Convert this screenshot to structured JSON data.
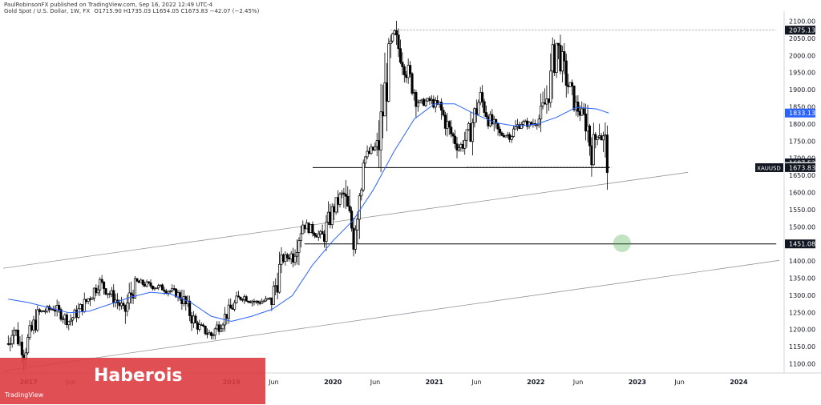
{
  "header": {
    "publisher": "PaulRobinsonFX published on TradingView.com, Sep 16, 2022 12:49 UTC-4",
    "symbol": "Gold Spot / U.S. Dollar, 1W, FX",
    "ohlc": "O1715.90 H1735.03 L1654.05 C1673.83 −42.07 (−2.45%)"
  },
  "overlay": {
    "brand": "Haberois",
    "footer": "TradingView"
  },
  "colors": {
    "up_candle": "#000000",
    "down_candle": "#000000",
    "ma_line": "#2962ff",
    "price_label_bg": "#131722",
    "ma_label_bg": "#2962ff",
    "target_circle": "#4caf50",
    "overlay_bg": "#dc3c40"
  },
  "chart_data": {
    "type": "candlestick",
    "symbol_label": "XAUUSD",
    "x_tick_labels": [
      "2017",
      "Jun",
      "2019",
      "Jun",
      "2020",
      "Jun",
      "2021",
      "Jun",
      "2022",
      "Jun",
      "2023",
      "Jun",
      "2024"
    ],
    "x_tick_dates": [
      "2017-01",
      "2017-06",
      "2019-01",
      "2019-06",
      "2020-01",
      "2020-06",
      "2021-01",
      "2021-06",
      "2022-01",
      "2022-06",
      "2023-01",
      "2023-06",
      "2024-01"
    ],
    "y_ticks": [
      1100,
      1150,
      1200,
      1250,
      1300,
      1350,
      1400,
      1450,
      1500,
      1550,
      1600,
      1650,
      1700,
      1750,
      1800,
      1850,
      1900,
      1950,
      2000,
      2050,
      2100
    ],
    "ylim": [
      1080,
      2120
    ],
    "grid": false,
    "price_axis_labels": [
      {
        "text": "2075.13",
        "value": 2075.13,
        "style": "dark"
      },
      {
        "text": "1833.13",
        "value": 1833.13,
        "style": "blue"
      },
      {
        "text": "1687.52",
        "value": 1687.52,
        "style": "dark"
      },
      {
        "text": "1676.69",
        "value": 1676.69,
        "style": "plain"
      },
      {
        "text": "1673.83",
        "value": 1673.83,
        "style": "dark"
      },
      {
        "text": "1451.08",
        "value": 1451.08,
        "style": "dark"
      }
    ],
    "horizontal_levels": [
      {
        "value": 1673.83,
        "from": 2019.8,
        "to": 2022.73,
        "style": "solid"
      },
      {
        "value": 1451.08,
        "from": 2019.72,
        "to": 2024.37,
        "style": "solid"
      },
      {
        "value": 2075.13,
        "from": 2020.57,
        "to": 2024.37,
        "style": "dotted"
      },
      {
        "value": 1676.69,
        "from": 2021.32,
        "to": 2022.75,
        "style": "dotted"
      }
    ],
    "channel_lines": [
      {
        "x1": 2016.75,
        "y1": 1380,
        "x2": 2023.5,
        "y2": 1660
      },
      {
        "x1": 2016.75,
        "y1": 1080,
        "x2": 2024.4,
        "y2": 1403
      }
    ],
    "target_marker": {
      "date": 2022.85,
      "value": 1453
    },
    "ma_series": [
      [
        2016.8,
        1290
      ],
      [
        2017.0,
        1280
      ],
      [
        2017.2,
        1265
      ],
      [
        2017.4,
        1250
      ],
      [
        2017.6,
        1255
      ],
      [
        2017.8,
        1275
      ],
      [
        2018.0,
        1295
      ],
      [
        2018.2,
        1310
      ],
      [
        2018.4,
        1305
      ],
      [
        2018.6,
        1280
      ],
      [
        2018.8,
        1240
      ],
      [
        2019.0,
        1225
      ],
      [
        2019.2,
        1240
      ],
      [
        2019.4,
        1260
      ],
      [
        2019.6,
        1300
      ],
      [
        2019.8,
        1390
      ],
      [
        2020.0,
        1460
      ],
      [
        2020.2,
        1520
      ],
      [
        2020.4,
        1610
      ],
      [
        2020.6,
        1720
      ],
      [
        2020.8,
        1815
      ],
      [
        2021.0,
        1860
      ],
      [
        2021.2,
        1860
      ],
      [
        2021.4,
        1830
      ],
      [
        2021.6,
        1805
      ],
      [
        2021.8,
        1795
      ],
      [
        2022.0,
        1800
      ],
      [
        2022.2,
        1820
      ],
      [
        2022.4,
        1850
      ],
      [
        2022.6,
        1845
      ],
      [
        2022.72,
        1833
      ]
    ],
    "price_path": [
      [
        2016.8,
        1160
      ],
      [
        2016.85,
        1210
      ],
      [
        2016.95,
        1135
      ],
      [
        2017.1,
        1250
      ],
      [
        2017.25,
        1265
      ],
      [
        2017.4,
        1225
      ],
      [
        2017.55,
        1275
      ],
      [
        2017.7,
        1340
      ],
      [
        2017.85,
        1290
      ],
      [
        2017.95,
        1255
      ],
      [
        2018.05,
        1340
      ],
      [
        2018.2,
        1330
      ],
      [
        2018.35,
        1320
      ],
      [
        2018.5,
        1300
      ],
      [
        2018.65,
        1215
      ],
      [
        2018.8,
        1185
      ],
      [
        2018.95,
        1245
      ],
      [
        2019.1,
        1300
      ],
      [
        2019.25,
        1280
      ],
      [
        2019.4,
        1290
      ],
      [
        2019.5,
        1405
      ],
      [
        2019.6,
        1420
      ],
      [
        2019.7,
        1510
      ],
      [
        2019.8,
        1490
      ],
      [
        2019.9,
        1470
      ],
      [
        2020.0,
        1550
      ],
      [
        2020.1,
        1600
      ],
      [
        2020.2,
        1480
      ],
      [
        2020.3,
        1700
      ],
      [
        2020.45,
        1740
      ],
      [
        2020.55,
        1980
      ],
      [
        2020.6,
        2060
      ],
      [
        2020.75,
        1940
      ],
      [
        2020.85,
        1860
      ],
      [
        2020.95,
        1870
      ],
      [
        2021.05,
        1850
      ],
      [
        2021.15,
        1780
      ],
      [
        2021.25,
        1730
      ],
      [
        2021.35,
        1780
      ],
      [
        2021.45,
        1880
      ],
      [
        2021.55,
        1810
      ],
      [
        2021.65,
        1770
      ],
      [
        2021.75,
        1770
      ],
      [
        2021.85,
        1805
      ],
      [
        2021.95,
        1800
      ],
      [
        2022.05,
        1820
      ],
      [
        2022.15,
        1920
      ],
      [
        2022.2,
        2040
      ],
      [
        2022.3,
        1930
      ],
      [
        2022.4,
        1850
      ],
      [
        2022.5,
        1810
      ],
      [
        2022.55,
        1720
      ],
      [
        2022.62,
        1790
      ],
      [
        2022.68,
        1740
      ],
      [
        2022.72,
        1673
      ]
    ]
  }
}
